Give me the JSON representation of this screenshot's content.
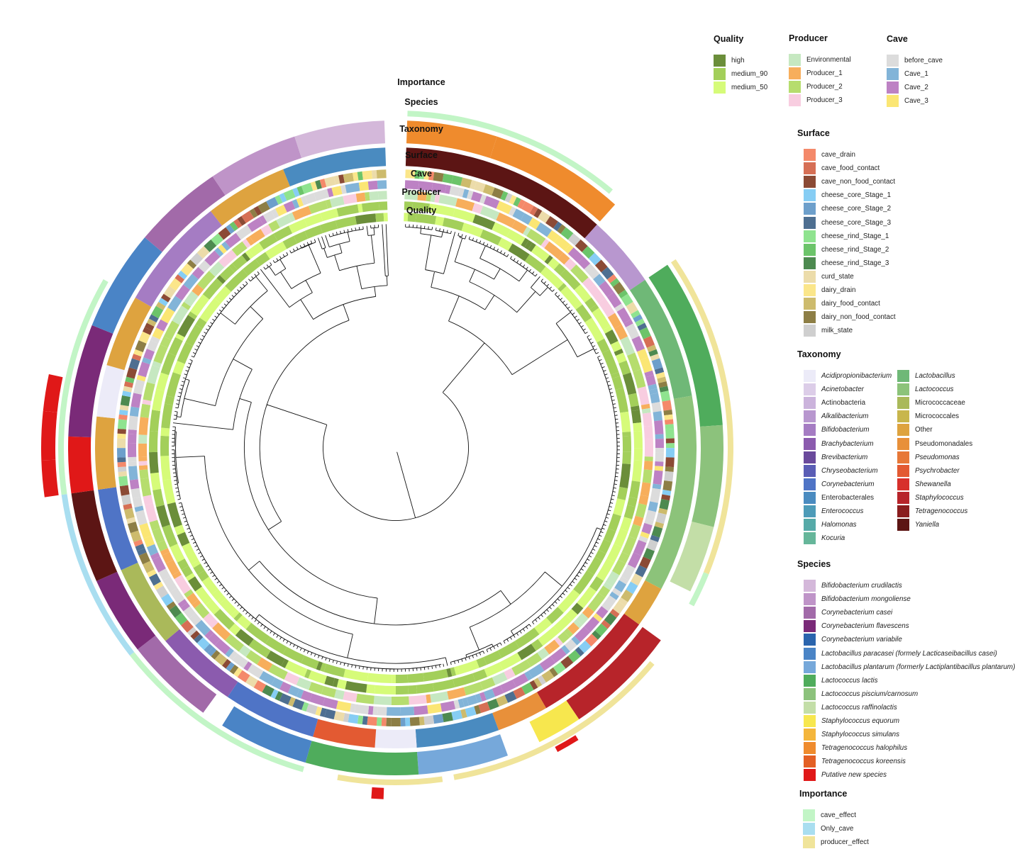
{
  "ring_labels": [
    "Importance",
    "Species",
    "Taxonomy",
    "Surface",
    "Cave",
    "Producer",
    "Quality"
  ],
  "legends": {
    "quality": {
      "title": "Quality",
      "items": [
        {
          "label": "high",
          "color": "#6b8e3a"
        },
        {
          "label": "medium_90",
          "color": "#a3cf5a"
        },
        {
          "label": "medium_50",
          "color": "#d6fb79"
        }
      ]
    },
    "producer": {
      "title": "Producer",
      "items": [
        {
          "label": "Environmental",
          "color": "#c6e8c1"
        },
        {
          "label": "Producer_1",
          "color": "#f7ae5c"
        },
        {
          "label": "Producer_2",
          "color": "#b6dd6e"
        },
        {
          "label": "Producer_3",
          "color": "#f8cde0"
        }
      ]
    },
    "cave": {
      "title": "Cave",
      "items": [
        {
          "label": "before_cave",
          "color": "#dcdcdc"
        },
        {
          "label": "Cave_1",
          "color": "#82b4d8"
        },
        {
          "label": "Cave_2",
          "color": "#bd82c4"
        },
        {
          "label": "Cave_3",
          "color": "#fbe674"
        }
      ]
    },
    "surface": {
      "title": "Surface",
      "items": [
        {
          "label": "cave_drain",
          "color": "#f4896a"
        },
        {
          "label": "cave_food_contact",
          "color": "#d66f55"
        },
        {
          "label": "cave_non_food_contact",
          "color": "#8b4a35"
        },
        {
          "label": "cheese_core_Stage_1",
          "color": "#86cdf4"
        },
        {
          "label": "cheese_core_Stage_2",
          "color": "#6d9fcb"
        },
        {
          "label": "cheese_core_Stage_3",
          "color": "#4e6f91"
        },
        {
          "label": "cheese_rind_Stage_1",
          "color": "#8fe38f"
        },
        {
          "label": "cheese_rind_Stage_2",
          "color": "#6cc46a"
        },
        {
          "label": "cheese_rind_Stage_3",
          "color": "#4d8a50"
        },
        {
          "label": "curd_state",
          "color": "#ecdcaa"
        },
        {
          "label": "dairy_drain",
          "color": "#fbe68a"
        },
        {
          "label": "dairy_food_contact",
          "color": "#cdbb6d"
        },
        {
          "label": "dairy_non_food_contact",
          "color": "#8d7e45"
        },
        {
          "label": "milk_state",
          "color": "#cfcfcf"
        }
      ]
    },
    "taxonomy": {
      "title": "Taxonomy",
      "col1": [
        {
          "label": "Acidipropionibacterium",
          "color": "#ecebf8",
          "italic": true
        },
        {
          "label": "Acinetobacter",
          "color": "#dccde8",
          "italic": true
        },
        {
          "label": "Actinobacteria",
          "color": "#cbb3dc",
          "italic": false
        },
        {
          "label": "Alkalibacterium",
          "color": "#b897cf",
          "italic": true
        },
        {
          "label": "Bifidobacterium",
          "color": "#a57cc3",
          "italic": true
        },
        {
          "label": "Brachybacterium",
          "color": "#8b5bae",
          "italic": true
        },
        {
          "label": "Brevibacterium",
          "color": "#6a4a9c",
          "italic": true
        },
        {
          "label": "Chryseobacterium",
          "color": "#5a5db5",
          "italic": true
        },
        {
          "label": "Corynebacterium",
          "color": "#4f74c6",
          "italic": true
        },
        {
          "label": "Enterobacterales",
          "color": "#4a8bc0",
          "italic": false
        },
        {
          "label": "Enterococcus",
          "color": "#4d9bb8",
          "italic": true
        },
        {
          "label": "Halomonas",
          "color": "#56aaa8",
          "italic": true
        },
        {
          "label": "Kocuria",
          "color": "#66b69a",
          "italic": true
        }
      ],
      "col2": [
        {
          "label": "Lactobacillus",
          "color": "#6fb877",
          "italic": true
        },
        {
          "label": "Lactococcus",
          "color": "#8cc37a",
          "italic": true
        },
        {
          "label": "Micrococcaceae",
          "color": "#aab95a",
          "italic": false
        },
        {
          "label": "Micrococcales",
          "color": "#c8b64c",
          "italic": false
        },
        {
          "label": "Other",
          "color": "#dea33f",
          "italic": false
        },
        {
          "label": "Pseudomonadales",
          "color": "#e8903a",
          "italic": false
        },
        {
          "label": "Pseudomonas",
          "color": "#e77838",
          "italic": true
        },
        {
          "label": "Psychrobacter",
          "color": "#e35a32",
          "italic": true
        },
        {
          "label": "Shewanella",
          "color": "#d7302b",
          "italic": true
        },
        {
          "label": "Staphylococcus",
          "color": "#b7242a",
          "italic": true
        },
        {
          "label": "Tetragenococcus",
          "color": "#8a1d1e",
          "italic": true
        },
        {
          "label": "Yaniella",
          "color": "#5c1514",
          "italic": true
        }
      ]
    },
    "species": {
      "title": "Species",
      "items": [
        {
          "label": "Bifidobacterium crudilactis",
          "color": "#d4b8da"
        },
        {
          "label": "Bifidobacterium mongoliense",
          "color": "#bf94c8"
        },
        {
          "label": "Corynebacterium casei",
          "color": "#a26aa9"
        },
        {
          "label": "Corynebacterium flavescens",
          "color": "#7a2a78"
        },
        {
          "label": "Corynebacterium variabile",
          "color": "#2a64ad"
        },
        {
          "label": "Lactobacillus paracasei (formely Lacticaseibacillus casei)",
          "color": "#4a84c6"
        },
        {
          "label": "Lactobacillus plantarum (formerly Lactiplantibacillus plantarum)",
          "color": "#76a8da"
        },
        {
          "label": "Lactococcus lactis",
          "color": "#4fac5c"
        },
        {
          "label": "Lactococcus piscium/carnosum",
          "color": "#8cc27c"
        },
        {
          "label": "Lactococcus raffinolactis",
          "color": "#c3dea7"
        },
        {
          "label": "Staphylococcus equorum",
          "color": "#f7e74e"
        },
        {
          "label": "Staphylococcus simulans",
          "color": "#f4b63c"
        },
        {
          "label": "Tetragenococcus halophilus",
          "color": "#ef8b2d"
        },
        {
          "label": "Tetragenococcus koreensis",
          "color": "#e35f24"
        },
        {
          "label": "Putative new species",
          "color": "#e01818"
        }
      ]
    },
    "importance": {
      "title": "Importance",
      "items": [
        {
          "label": "cave_effect",
          "color": "#c2f5c6"
        },
        {
          "label": "Only_cave",
          "color": "#a9def0"
        },
        {
          "label": "producer_effect",
          "color": "#f0e49a"
        }
      ]
    }
  }
}
